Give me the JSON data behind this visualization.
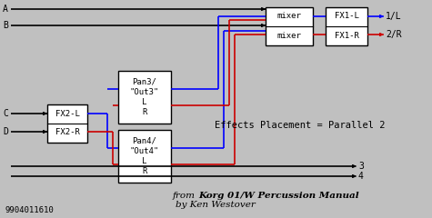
{
  "title": "Effects Placement: Parallel2",
  "bg_color": "#c0c0c0",
  "box_color": "#ffffff",
  "box_edge": "#000000",
  "blue": "#0000ff",
  "red": "#cc0000",
  "black": "#000000",
  "annotation": "Effects Placement = Parallel 2",
  "footer2": "Korg 01/W Percussion Manual",
  "footer3": "by Ken Westover",
  "stamp": "9904011610"
}
